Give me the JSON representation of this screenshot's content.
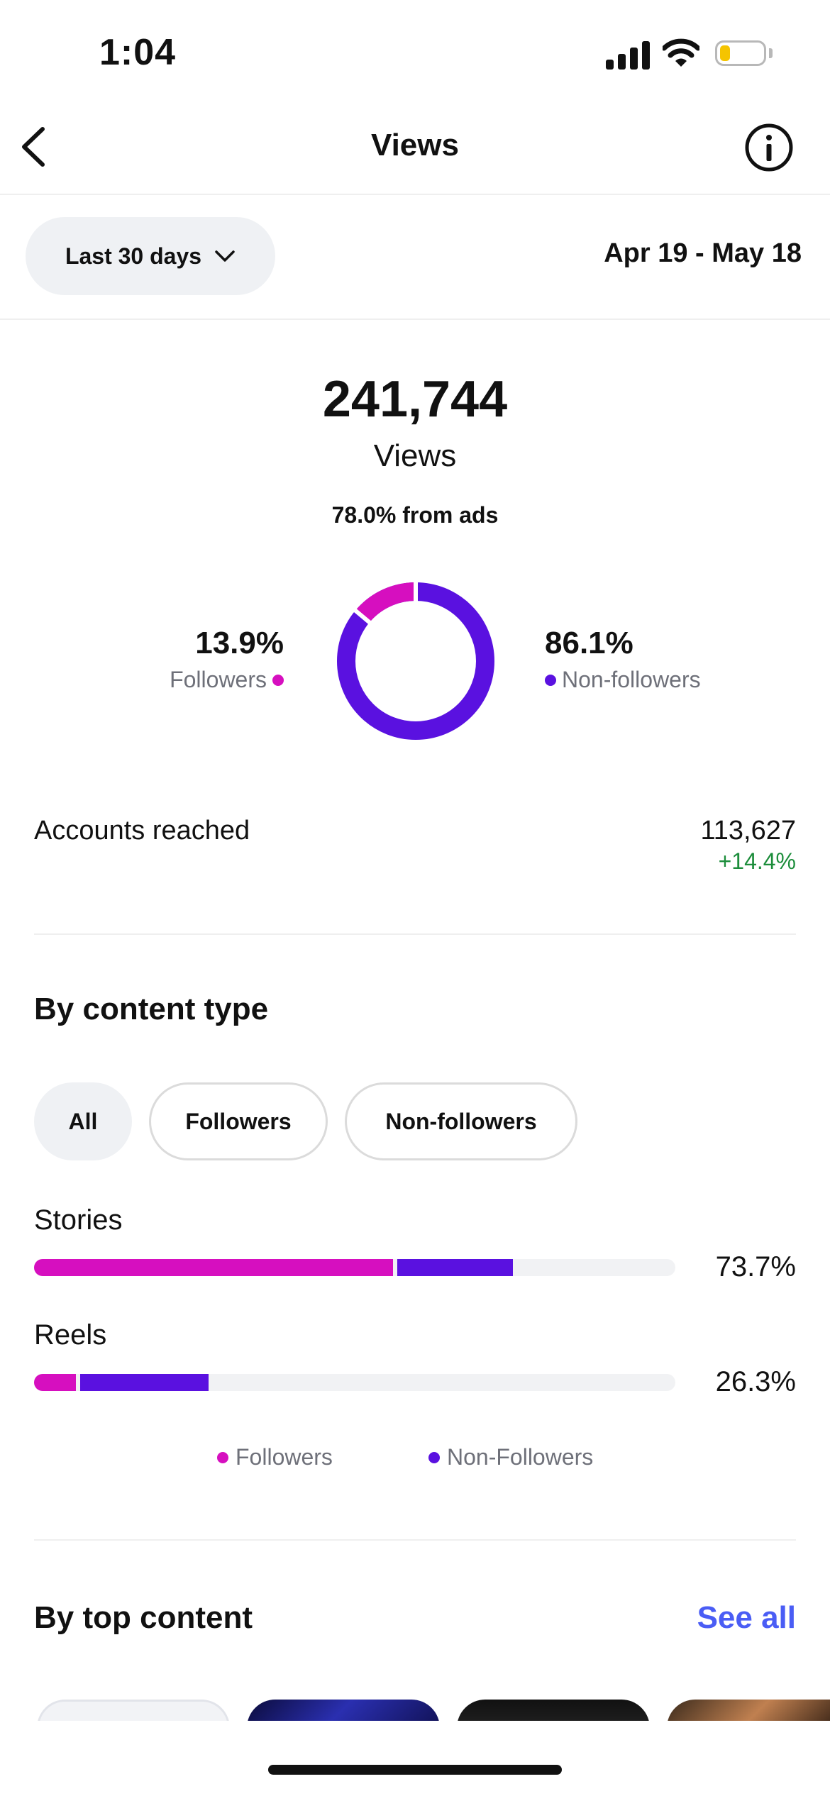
{
  "status_bar": {
    "time": "1:04"
  },
  "header": {
    "title": "Views"
  },
  "range": {
    "selector_label": "Last 30 days",
    "dates": "Apr 19 - May 18"
  },
  "summary": {
    "total": "241,744",
    "label": "Views",
    "ads_note": "78.0% from ads",
    "followers_pct": "13.9%",
    "followers_label": "Followers",
    "nonfollowers_pct": "86.1%",
    "nonfollowers_label": "Non-followers"
  },
  "accounts_reached": {
    "label": "Accounts reached",
    "value": "113,627",
    "change": "+14.4%"
  },
  "content_type": {
    "title": "By content type",
    "filters": [
      "All",
      "Followers",
      "Non-followers"
    ],
    "active_filter": "All",
    "rows": [
      {
        "label": "Stories",
        "pct": "73.7%",
        "followers_share": 0.56,
        "nonfollowers_share": 0.18
      },
      {
        "label": "Reels",
        "pct": "26.3%",
        "followers_share": 0.065,
        "nonfollowers_share": 0.2
      }
    ],
    "legend": [
      "Followers",
      "Non-Followers"
    ]
  },
  "top_content": {
    "title": "By top content",
    "see_all": "See all"
  },
  "colors": {
    "followers": "#d60fbf",
    "nonfollowers": "#5a11e0",
    "positive": "#1c8d3b",
    "link": "#4a5df5"
  }
}
